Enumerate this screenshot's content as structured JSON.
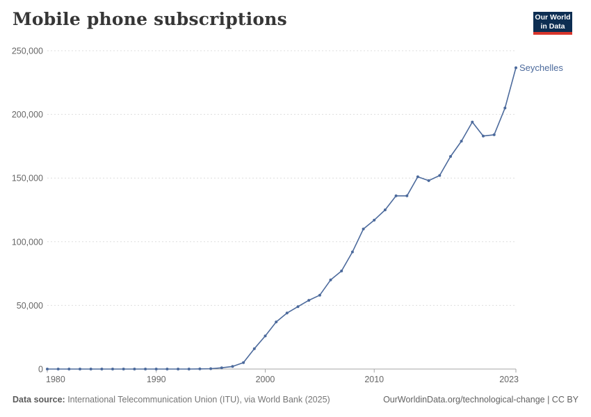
{
  "header": {
    "title": "Mobile phone subscriptions"
  },
  "logo": {
    "line1": "Our World",
    "line2": "in Data",
    "bg_color": "#0d2e52",
    "bar_color": "#d8352b"
  },
  "chart_data": {
    "type": "line",
    "title": "Mobile phone subscriptions",
    "xlabel": "",
    "ylabel": "",
    "xlim": [
      1980,
      2023
    ],
    "ylim": [
      0,
      250000
    ],
    "grid": "horizontal-dashed",
    "legend_position": "end-of-line-label",
    "xticks": [
      1980,
      1990,
      2000,
      2010,
      2023
    ],
    "yticks": [
      0,
      50000,
      100000,
      150000,
      200000,
      250000
    ],
    "ytick_labels": [
      "0",
      "50,000",
      "100,000",
      "150,000",
      "200,000",
      "250,000"
    ],
    "series": [
      {
        "name": "Seychelles",
        "color": "#4c6a9c",
        "x": [
          1980,
          1981,
          1982,
          1983,
          1984,
          1985,
          1986,
          1987,
          1988,
          1989,
          1990,
          1991,
          1992,
          1993,
          1994,
          1995,
          1996,
          1997,
          1998,
          1999,
          2000,
          2001,
          2002,
          2003,
          2004,
          2005,
          2006,
          2007,
          2008,
          2009,
          2010,
          2011,
          2012,
          2013,
          2014,
          2015,
          2016,
          2017,
          2018,
          2019,
          2020,
          2021,
          2022,
          2023
        ],
        "values": [
          0,
          0,
          0,
          0,
          0,
          0,
          0,
          0,
          0,
          0,
          0,
          0,
          0,
          0,
          100,
          300,
          1000,
          2000,
          5000,
          16000,
          26000,
          37000,
          44000,
          49000,
          54000,
          58000,
          70000,
          77000,
          92000,
          110000,
          117000,
          125000,
          136000,
          136000,
          151000,
          148000,
          152000,
          167000,
          179000,
          194000,
          183000,
          184000,
          205000,
          236600
        ]
      }
    ]
  },
  "footer": {
    "source_prefix": "Data source:",
    "source_text": " International Telecommunication Union (ITU), via World Bank (2025)",
    "link_text": "OurWorldinData.org/technological-change | CC BY"
  },
  "colors": {
    "line": "#4c6a9c",
    "end_label": "#4c6a9c",
    "grid": "#dddddd",
    "axis": "#a5a5a5",
    "tick_text": "#666666",
    "title_text": "#363636",
    "footer_text": "#757575"
  }
}
